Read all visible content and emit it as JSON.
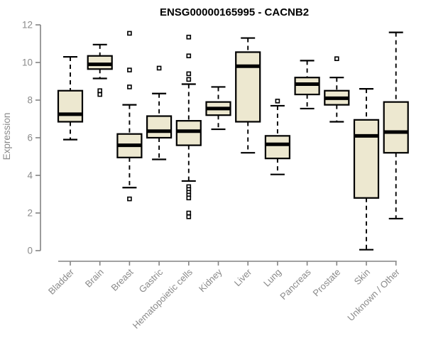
{
  "chart_data": {
    "type": "boxplot",
    "title": "ENSG00000165995 - CACNB2",
    "xlabel": "",
    "ylabel": "Expression",
    "ylim": [
      0,
      12
    ],
    "yticks": [
      0,
      2,
      4,
      6,
      8,
      10,
      12
    ],
    "grid": false,
    "legend": null,
    "categories": [
      "Bladder",
      "Brain",
      "Breast",
      "Gastric",
      "Hematopoietic cells",
      "Kidney",
      "Liver",
      "Lung",
      "Pancreas",
      "Prostate",
      "Skin",
      "Unknown / Other"
    ],
    "series": [
      {
        "category": "Bladder",
        "low": 5.9,
        "q1": 6.85,
        "median": 7.25,
        "q3": 8.5,
        "high": 10.3,
        "outliers": []
      },
      {
        "category": "Brain",
        "low": 9.15,
        "q1": 9.65,
        "median": 9.9,
        "q3": 10.35,
        "high": 10.95,
        "outliers": [
          8.5,
          8.3
        ]
      },
      {
        "category": "Breast",
        "low": 3.35,
        "q1": 4.95,
        "median": 5.6,
        "q3": 6.2,
        "high": 7.75,
        "outliers": [
          11.55,
          9.6,
          8.7,
          2.75
        ]
      },
      {
        "category": "Gastric",
        "low": 4.85,
        "q1": 6.0,
        "median": 6.35,
        "q3": 7.15,
        "high": 8.35,
        "outliers": [
          9.7
        ]
      },
      {
        "category": "Hematopoietic cells",
        "low": 3.7,
        "q1": 5.6,
        "median": 6.35,
        "q3": 6.9,
        "high": 8.85,
        "outliers": [
          11.35,
          10.35,
          9.4,
          9.1,
          3.4,
          3.25,
          3.1,
          2.95,
          2.8,
          2.0,
          1.8
        ]
      },
      {
        "category": "Kidney",
        "low": 6.45,
        "q1": 7.2,
        "median": 7.55,
        "q3": 7.9,
        "high": 8.7,
        "outliers": []
      },
      {
        "category": "Liver",
        "low": 5.2,
        "q1": 6.85,
        "median": 9.8,
        "q3": 10.55,
        "high": 11.3,
        "outliers": []
      },
      {
        "category": "Lung",
        "low": 4.05,
        "q1": 4.9,
        "median": 5.65,
        "q3": 6.1,
        "high": 7.7,
        "outliers": [
          7.95
        ]
      },
      {
        "category": "Pancreas",
        "low": 7.55,
        "q1": 8.3,
        "median": 8.85,
        "q3": 9.2,
        "high": 10.1,
        "outliers": []
      },
      {
        "category": "Prostate",
        "low": 6.85,
        "q1": 7.75,
        "median": 8.1,
        "q3": 8.5,
        "high": 9.2,
        "outliers": [
          10.2
        ]
      },
      {
        "category": "Skin",
        "low": 0.05,
        "q1": 2.8,
        "median": 6.1,
        "q3": 6.95,
        "high": 8.6,
        "outliers": []
      },
      {
        "category": "Unknown / Other",
        "low": 1.7,
        "q1": 5.2,
        "median": 6.3,
        "q3": 7.9,
        "high": 11.6,
        "outliers": []
      }
    ],
    "colors": {
      "box_fill": "#EDE8D0",
      "box_stroke": "#000000",
      "median_stroke": "#000000",
      "whisker_stroke": "#000000",
      "outlier_stroke": "#000000",
      "outlier_fill": "#ffffff",
      "axis": "#848484",
      "tick_label": "#8a8a8a",
      "title_color": "#000000",
      "background": "#ffffff"
    }
  }
}
